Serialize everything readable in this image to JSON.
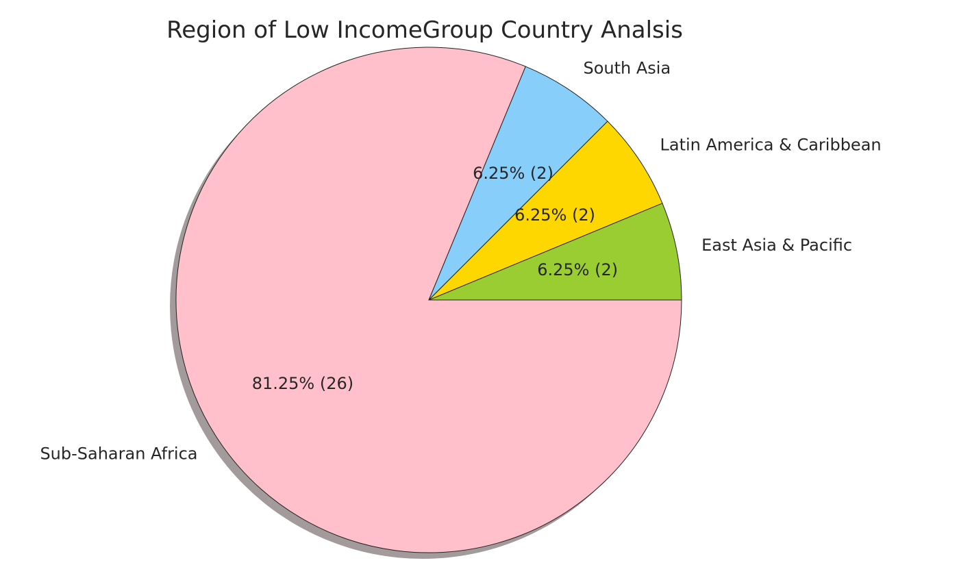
{
  "chart_data": {
    "type": "pie",
    "title": "Region of Low IncomeGroup Country Analsis",
    "start_angle": 0,
    "direction": "counterclockwise",
    "shadow": true,
    "slices": [
      {
        "label": "East Asia & Pacific",
        "value": 2,
        "pct_label": "6.25%  (2)",
        "color": "#9ACD32"
      },
      {
        "label": "Latin America & Caribbean",
        "value": 2,
        "pct_label": "6.25%  (2)",
        "color": "#FFD700"
      },
      {
        "label": "South Asia",
        "value": 2,
        "pct_label": "6.25%  (2)",
        "color": "#87CEFA"
      },
      {
        "label": "Sub-Saharan Africa",
        "value": 26,
        "pct_label": "81.25%  (26)",
        "color": "#FFC0CB"
      }
    ],
    "shadow_color": "#a39a9b"
  }
}
